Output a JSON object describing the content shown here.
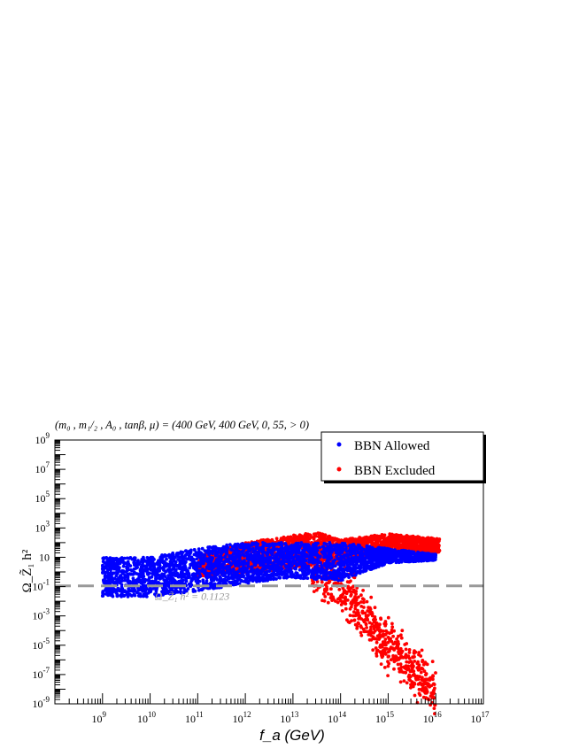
{
  "chart_data": {
    "type": "scatter",
    "title": "(m₀ , m₁/₂ , A₀ , tanβ, μ) = (400 GeV, 400 GeV, 0, 55, > 0)",
    "xlabel": "f_a (GeV)",
    "ylabel": "Ω_Z̃₁ h²",
    "x_scale": "log",
    "y_scale": "log",
    "xlim": [
      100000000.0,
      1e+17
    ],
    "ylim": [
      1e-09,
      1000000000.0
    ],
    "x_ticks": [
      {
        "value": 1000000000.0,
        "base": "10",
        "exp": "9"
      },
      {
        "value": 10000000000.0,
        "base": "10",
        "exp": "10"
      },
      {
        "value": 100000000000.0,
        "base": "10",
        "exp": "11"
      },
      {
        "value": 1000000000000.0,
        "base": "10",
        "exp": "12"
      },
      {
        "value": 10000000000000.0,
        "base": "10",
        "exp": "13"
      },
      {
        "value": 100000000000000.0,
        "base": "10",
        "exp": "14"
      },
      {
        "value": 1000000000000000.0,
        "base": "10",
        "exp": "15"
      },
      {
        "value": 1e+16,
        "base": "10",
        "exp": "16"
      },
      {
        "value": 1e+17,
        "base": "10",
        "exp": "17"
      }
    ],
    "y_ticks": [
      {
        "value": 1e-09,
        "base": "10",
        "exp": "-9"
      },
      {
        "value": 1e-07,
        "base": "10",
        "exp": "-7"
      },
      {
        "value": 1e-05,
        "base": "10",
        "exp": "-5"
      },
      {
        "value": 0.001,
        "base": "10",
        "exp": "-3"
      },
      {
        "value": 0.1,
        "base": "10",
        "exp": "-1"
      },
      {
        "value": 10,
        "base": "10",
        "exp": ""
      },
      {
        "value": 1000.0,
        "base": "10",
        "exp": "3"
      },
      {
        "value": 100000.0,
        "base": "10",
        "exp": "5"
      },
      {
        "value": 10000000.0,
        "base": "10",
        "exp": "7"
      },
      {
        "value": 1000000000.0,
        "base": "10",
        "exp": "9"
      }
    ],
    "reference_line": {
      "value": 0.1123,
      "label": "Ω_Z̃₁ h² = 0.1123",
      "color": "#999999"
    },
    "legend": {
      "placement": "top-right"
    },
    "series": [
      {
        "name": "BBN Excluded",
        "color": "#ff0000",
        "bands": [
          {
            "x_range": [
              100000000000.0,
              1.2e+16
            ],
            "lower_log": [
              [
                11,
                -0.3
              ],
              [
                13,
                0.2
              ],
              [
                14,
                0.6
              ],
              [
                15,
                1.2
              ],
              [
                16,
                1.3
              ]
            ],
            "upper_log": [
              [
                11,
                1.1
              ],
              [
                12,
                2.0
              ],
              [
                13,
                2.5
              ],
              [
                13.5,
                2.7
              ],
              [
                14,
                2.2
              ],
              [
                15,
                2.6
              ],
              [
                16,
                2.3
              ]
            ]
          },
          {
            "x_range": [
              10000000000000.0,
              1e+16
            ],
            "tail_log": [
              [
                13.4,
                0.2
              ],
              [
                13.8,
                -0.5
              ],
              [
                14.2,
                -1.8
              ],
              [
                14.6,
                -3.5
              ],
              [
                15.0,
                -5.0
              ],
              [
                15.4,
                -6.2
              ],
              [
                15.8,
                -7.4
              ],
              [
                16.0,
                -8.4
              ]
            ]
          }
        ]
      },
      {
        "name": "BBN Allowed",
        "color": "#0000ff",
        "bands": [
          {
            "x_range": [
              1000000000.0,
              1e+16
            ],
            "lower_log": [
              [
                9,
                -1.7
              ],
              [
                10,
                -1.7
              ],
              [
                11,
                -1.3
              ],
              [
                12,
                -0.8
              ],
              [
                13,
                -0.4
              ],
              [
                14,
                -0.6
              ],
              [
                14.5,
                0.0
              ],
              [
                15,
                0.6
              ],
              [
                16,
                0.8
              ]
            ],
            "upper_log": [
              [
                9,
                1.0
              ],
              [
                10,
                1.0
              ],
              [
                11,
                1.6
              ],
              [
                12,
                2.0
              ],
              [
                13,
                2.0
              ],
              [
                14,
                2.0
              ],
              [
                15,
                1.6
              ],
              [
                16,
                1.2
              ]
            ]
          }
        ]
      }
    ]
  }
}
